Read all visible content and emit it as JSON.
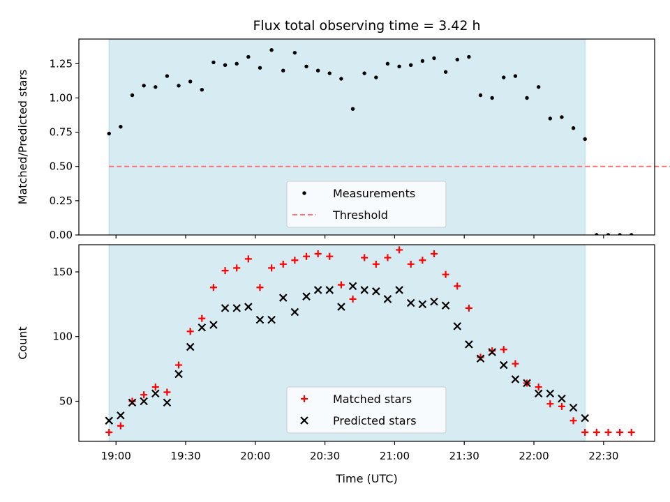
{
  "chart_data": [
    {
      "type": "scatter",
      "title": "Flux total observing time = 3.42 h",
      "xlabel": "",
      "ylabel": "Matched/Predicted stars",
      "ylim": [
        0,
        1.43
      ],
      "yticks": [
        "0.00",
        "0.25",
        "0.50",
        "0.75",
        "1.00",
        "1.25"
      ],
      "xticks": [
        "19:00",
        "19:30",
        "20:00",
        "20:30",
        "21:00",
        "21:30",
        "22:00",
        "22:30"
      ],
      "x_domain": [
        "18:44",
        "22:52"
      ],
      "observing_window": [
        "18:57",
        "22:22"
      ],
      "threshold": {
        "name": "Threshold",
        "value": 0.5,
        "x_range": [
          "18:57",
          "23:12"
        ],
        "color": "#ff7070"
      },
      "legend": {
        "position": "lower center",
        "entries": [
          "Measurements",
          "Threshold"
        ]
      },
      "series": [
        {
          "name": "Measurements",
          "marker": "dot",
          "color": "#000000",
          "x": [
            "18:57",
            "19:02",
            "19:07",
            "19:12",
            "19:17",
            "19:22",
            "19:27",
            "19:32",
            "19:37",
            "19:42",
            "19:47",
            "19:52",
            "19:57",
            "20:02",
            "20:07",
            "20:12",
            "20:17",
            "20:22",
            "20:27",
            "20:32",
            "20:37",
            "20:42",
            "20:47",
            "20:52",
            "20:57",
            "21:02",
            "21:07",
            "21:12",
            "21:17",
            "21:22",
            "21:27",
            "21:32",
            "21:37",
            "21:42",
            "21:47",
            "21:52",
            "21:57",
            "22:02",
            "22:07",
            "22:12",
            "22:17",
            "22:22",
            "22:27",
            "22:32",
            "22:37",
            "22:42"
          ],
          "y": [
            0.74,
            0.79,
            1.02,
            1.09,
            1.08,
            1.16,
            1.09,
            1.12,
            1.06,
            1.26,
            1.24,
            1.25,
            1.3,
            1.22,
            1.35,
            1.2,
            1.33,
            1.23,
            1.2,
            1.18,
            1.14,
            0.92,
            1.18,
            1.15,
            1.25,
            1.23,
            1.24,
            1.27,
            1.29,
            1.19,
            1.28,
            1.3,
            1.02,
            1.0,
            1.15,
            1.16,
            1.0,
            1.08,
            0.85,
            0.86,
            0.78,
            0.7,
            0.0,
            0.0,
            0.0,
            0.0
          ]
        }
      ]
    },
    {
      "type": "scatter",
      "title": "",
      "xlabel": "Time (UTC)",
      "ylabel": "Count",
      "ylim": [
        19,
        171
      ],
      "yticks": [
        "50",
        "100",
        "150"
      ],
      "xticks": [
        "19:00",
        "19:30",
        "20:00",
        "20:30",
        "21:00",
        "21:30",
        "22:00",
        "22:30"
      ],
      "x_domain": [
        "18:44",
        "22:52"
      ],
      "observing_window": [
        "18:57",
        "22:22"
      ],
      "legend": {
        "position": "lower center",
        "entries": [
          "Matched stars",
          "Predicted stars"
        ]
      },
      "x": [
        "18:57",
        "19:02",
        "19:07",
        "19:12",
        "19:17",
        "19:22",
        "19:27",
        "19:32",
        "19:37",
        "19:42",
        "19:47",
        "19:52",
        "19:57",
        "20:02",
        "20:07",
        "20:12",
        "20:17",
        "20:22",
        "20:27",
        "20:32",
        "20:37",
        "20:42",
        "20:47",
        "20:52",
        "20:57",
        "21:02",
        "21:07",
        "21:12",
        "21:17",
        "21:22",
        "21:27",
        "21:32",
        "21:37",
        "21:42",
        "21:47",
        "21:52",
        "21:57",
        "22:02",
        "22:07",
        "22:12",
        "22:17",
        "22:22",
        "22:27",
        "22:32",
        "22:37",
        "22:42"
      ],
      "series": [
        {
          "name": "Matched stars",
          "marker": "plus",
          "color": "#ff0000",
          "values": [
            26,
            31,
            50,
            55,
            61,
            57,
            78,
            104,
            114,
            138,
            151,
            153,
            160,
            138,
            153,
            156,
            159,
            162,
            164,
            162,
            140,
            129,
            161,
            156,
            161,
            167,
            156,
            159,
            164,
            148,
            139,
            122,
            84,
            89,
            90,
            79,
            64,
            61,
            48,
            46,
            35,
            26,
            26,
            26,
            26,
            26
          ]
        },
        {
          "name": "Predicted stars",
          "marker": "x",
          "color": "#000000",
          "values": [
            35,
            39,
            49,
            50,
            56,
            49,
            71,
            92,
            107,
            109,
            122,
            122,
            123,
            113,
            113,
            130,
            119,
            131,
            136,
            136,
            123,
            139,
            136,
            135,
            129,
            136,
            126,
            125,
            127,
            124,
            108,
            94,
            83,
            88,
            78,
            67,
            64,
            56,
            56,
            52,
            45,
            37,
            null,
            null,
            null,
            null
          ]
        }
      ]
    }
  ]
}
